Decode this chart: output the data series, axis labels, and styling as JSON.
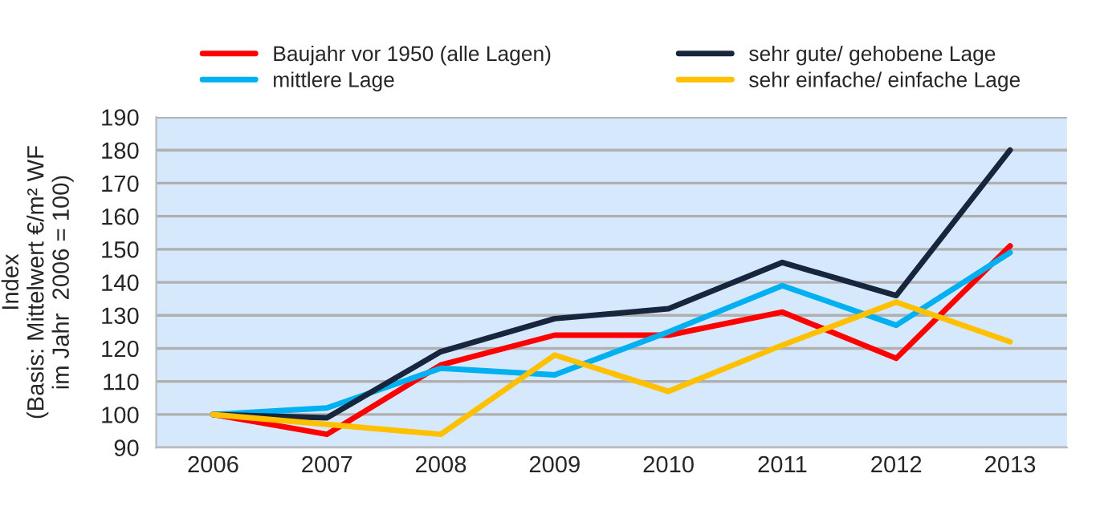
{
  "chart_data": {
    "type": "line",
    "ylabel": "Index\n(Basis: Mittelwert €/m² WF\nim Jahr  2006 = 100)",
    "categories": [
      "2006",
      "2007",
      "2008",
      "2009",
      "2010",
      "2011",
      "2012",
      "2013"
    ],
    "series": [
      {
        "name": "Baujahr vor 1950 (alle Lagen)",
        "color": "#ff0000",
        "values": [
          100,
          94,
          115,
          124,
          124,
          131,
          117,
          151
        ]
      },
      {
        "name": "mittlere Lage",
        "color": "#00b0f0",
        "values": [
          100,
          102,
          114,
          112,
          125,
          139,
          127,
          149
        ]
      },
      {
        "name": "sehr gute/ gehobene Lage",
        "color": "#17253d",
        "values": [
          100,
          99,
          119,
          129,
          132,
          146,
          136,
          180
        ]
      },
      {
        "name": "sehr einfache/ einfache Lage",
        "color": "#ffc000",
        "values": [
          100,
          97,
          94,
          118,
          107,
          121,
          134,
          122
        ]
      }
    ],
    "ylim": [
      90,
      190
    ],
    "yticks": [
      90,
      100,
      110,
      120,
      130,
      140,
      150,
      160,
      170,
      180,
      190
    ],
    "grid": "y",
    "legend": "top",
    "marker": "none",
    "line_style": "solid"
  }
}
